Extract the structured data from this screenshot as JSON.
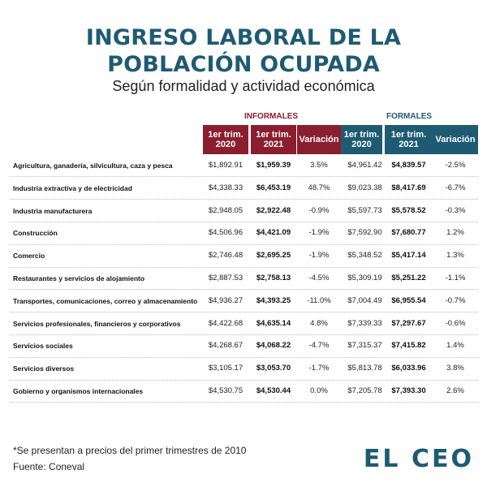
{
  "title_line1": "INGRESO LABORAL DE LA",
  "title_line2": "POBLACIÓN OCUPADA",
  "subtitle": "Según formalidad y actividad económica",
  "groups": {
    "informales": "INFORMALES",
    "formales": "FORMALES"
  },
  "colors": {
    "informales": "#8b1e2e",
    "formales": "#1e5b72",
    "title": "#1e5b72"
  },
  "columns": [
    {
      "line1": "1er trim.",
      "line2": "2020"
    },
    {
      "line1": "1er trim.",
      "line2": "2021"
    },
    {
      "line1": "Variación",
      "line2": ""
    },
    {
      "line1": "1er trim.",
      "line2": "2020"
    },
    {
      "line1": "1er trim.",
      "line2": "2021"
    },
    {
      "line1": "Variación",
      "line2": ""
    }
  ],
  "rows": [
    {
      "sector": "Agricultura, ganadería, silvicultura, caza y pesca",
      "inf_2020": "$1,892.91",
      "inf_2021": "$1,959.39",
      "inf_var": "3.5%",
      "for_2020": "$4,961.42",
      "for_2021": "$4,839.57",
      "for_var": "-2.5%"
    },
    {
      "sector": "Industria extractiva y de electricidad",
      "inf_2020": "$4,338.33",
      "inf_2021": "$6,453.19",
      "inf_var": "48.7%",
      "for_2020": "$9,023.38",
      "for_2021": "$8,417.69",
      "for_var": "-6.7%"
    },
    {
      "sector": "Industria manufacturera",
      "inf_2020": "$2,948.05",
      "inf_2021": "$2,922.48",
      "inf_var": "-0.9%",
      "for_2020": "$5,597.73",
      "for_2021": "$5,578.52",
      "for_var": "-0.3%"
    },
    {
      "sector": "Construcción",
      "inf_2020": "$4,506.96",
      "inf_2021": "$4,421.09",
      "inf_var": "-1.9%",
      "for_2020": "$7,592.90",
      "for_2021": "$7,680.77",
      "for_var": "1.2%"
    },
    {
      "sector": "Comercio",
      "inf_2020": "$2,746.48",
      "inf_2021": "$2,695.25",
      "inf_var": "-1.9%",
      "for_2020": "$5,348.52",
      "for_2021": "$5,417.14",
      "for_var": "1.3%"
    },
    {
      "sector": "Restaurantes y servicios de alojamiento",
      "inf_2020": "$2,887.53",
      "inf_2021": "$2,758.13",
      "inf_var": "-4.5%",
      "for_2020": "$5,309.19",
      "for_2021": "$5,251.22",
      "for_var": "-1.1%"
    },
    {
      "sector": "Transportes, comunicaciones, correo y almacenamiento",
      "inf_2020": "$4,936.27",
      "inf_2021": "$4,393.25",
      "inf_var": "-11.0%",
      "for_2020": "$7,004.49",
      "for_2021": "$6,955.54",
      "for_var": "-0.7%"
    },
    {
      "sector": "Servicios profesionales, financieros y corporativos",
      "inf_2020": "$4,422.68",
      "inf_2021": "$4,635.14",
      "inf_var": "4.8%",
      "for_2020": "$7,339.33",
      "for_2021": "$7,297.67",
      "for_var": "-0.6%"
    },
    {
      "sector": "Servicios sociales",
      "inf_2020": "$4,268.67",
      "inf_2021": "$4,068.22",
      "inf_var": "-4.7%",
      "for_2020": "$7,315.37",
      "for_2021": "$7,415.82",
      "for_var": "1.4%"
    },
    {
      "sector": "Servicios diversos",
      "inf_2020": "$3,105.17",
      "inf_2021": "$3,053.70",
      "inf_var": "-1.7%",
      "for_2020": "$5,813.78",
      "for_2021": "$6,033.96",
      "for_var": "3.8%"
    },
    {
      "sector": "Gobierno y organismos internacionales",
      "inf_2020": "$4,530.75",
      "inf_2021": "$4,530.44",
      "inf_var": "0.0%",
      "for_2020": "$7,205.78",
      "for_2021": "$7,393.30",
      "for_var": "2.6%"
    }
  ],
  "footnote": "*Se presentan a precios del primer trimestres de 2010",
  "source": "Fuente: Coneval",
  "brand": "EL CEO"
}
